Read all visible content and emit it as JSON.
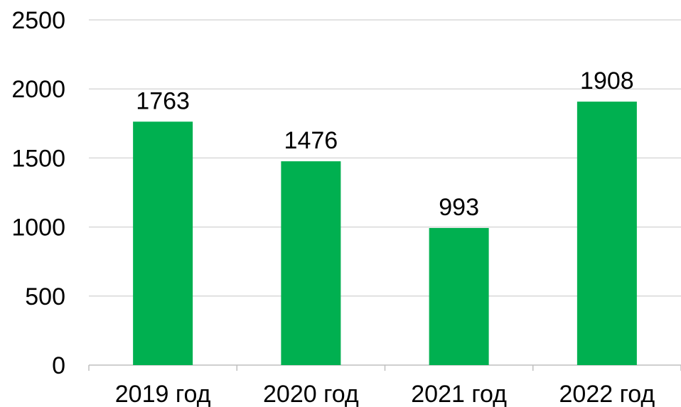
{
  "chart_data": {
    "type": "bar",
    "categories": [
      "2019 год",
      "2020 год",
      "2021 год",
      "2022 год"
    ],
    "values": [
      1763,
      1476,
      993,
      1908
    ],
    "data_labels": [
      "1763",
      "1476",
      "993",
      "1908"
    ],
    "title": "",
    "xlabel": "",
    "ylabel": "",
    "ylim": [
      0,
      2500
    ],
    "y_ticks": [
      0,
      500,
      1000,
      1500,
      2000,
      2500
    ],
    "y_tick_labels": [
      "0",
      "500",
      "1000",
      "1500",
      "2000",
      "2500"
    ],
    "grid": true,
    "legend": "none",
    "colors": {
      "bar": "#00B050",
      "grid": "#D9D9D9",
      "axis": "#BFBFBF",
      "text": "#000000"
    }
  }
}
